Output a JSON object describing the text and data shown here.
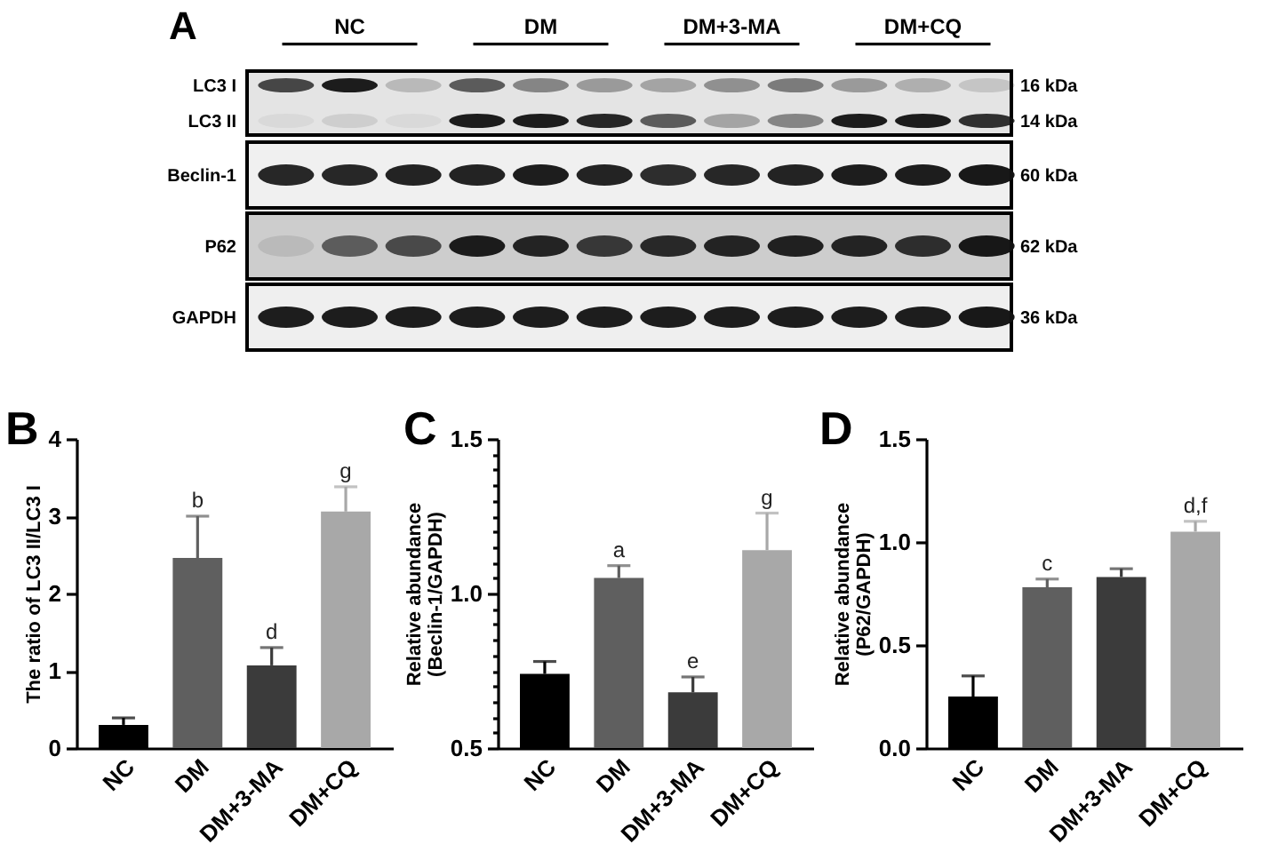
{
  "chart_data": [
    {
      "type": "other",
      "title": "A",
      "categories": [
        "NC",
        "DM",
        "DM+3-MA",
        "DM+CQ"
      ],
      "y_categories": [
        "LC3 I",
        "LC3 II",
        "Beclin-1",
        "P62",
        "GAPDH"
      ],
      "y2_categories": [
        "16 kDa",
        "14 kDa",
        "60 kDa",
        "62 kDa",
        "36 kDa"
      ]
    },
    {
      "type": "bar",
      "title": "B",
      "ylabel": "The ratio of LC3 II/LC3 I",
      "categories": [
        "NC",
        "DM",
        "DM+3-MA",
        "DM+CQ"
      ],
      "values": [
        0.3,
        2.46,
        1.07,
        3.06
      ],
      "colors": [
        "#000000",
        "#5f5f5f",
        "#3b3b3b",
        "#a8a8a8"
      ],
      "errors": [
        [
          0.3,
          0.39
        ],
        [
          2.46,
          3.0
        ],
        [
          1.07,
          1.3
        ],
        [
          3.06,
          3.38
        ]
      ],
      "ylim": [
        0,
        4
      ],
      "yticks": [
        0,
        1,
        2,
        3,
        4
      ],
      "annotations": [
        {
          "text": "b",
          "x": "DM",
          "y": 3.0
        },
        {
          "text": "d",
          "x": "DM+3-MA",
          "y": 1.3
        },
        {
          "text": "g",
          "x": "DM+CQ",
          "y": 3.38
        }
      ]
    },
    {
      "type": "bar",
      "title": "C",
      "ylabel": "Relative abundance\n(Beclin-1/GAPDH)",
      "categories": [
        "NC",
        "DM",
        "DM+3-MA",
        "DM+CQ"
      ],
      "values": [
        0.74,
        1.05,
        0.68,
        1.14
      ],
      "colors": [
        "#000000",
        "#5f5f5f",
        "#3b3b3b",
        "#a8a8a8"
      ],
      "errors": [
        [
          0.74,
          0.78
        ],
        [
          1.05,
          1.09
        ],
        [
          0.68,
          0.73
        ],
        [
          1.14,
          1.26
        ]
      ],
      "ylim": [
        0.5,
        1.5
      ],
      "yticks": [
        0.5,
        {
          "value": 0.55,
          "label": null
        },
        {
          "value": 0.6,
          "label": null
        },
        {
          "value": 0.65,
          "label": null
        },
        {
          "value": 0.7,
          "label": null
        },
        {
          "value": 0.75,
          "label": null
        },
        {
          "value": 0.8,
          "label": null
        },
        {
          "value": 0.85,
          "label": null
        },
        {
          "value": 0.9,
          "label": null
        },
        {
          "value": 0.95,
          "label": null
        },
        {
          "value": 1,
          "label": "1.0"
        },
        {
          "value": 1.05,
          "label": null
        },
        {
          "value": 1.1,
          "label": null
        },
        {
          "value": 1.15,
          "label": null
        },
        {
          "value": 1.2,
          "label": null
        },
        {
          "value": 1.25,
          "label": null
        },
        {
          "value": 1.3,
          "label": null
        },
        {
          "value": 1.35,
          "label": null
        },
        {
          "value": 1.4,
          "label": null
        },
        {
          "value": 1.45,
          "label": null
        },
        1.5
      ],
      "annotations": [
        {
          "text": "a",
          "x": "DM",
          "y": 1.09
        },
        {
          "text": "e",
          "x": "DM+3-MA",
          "y": 0.73
        },
        {
          "text": "g",
          "x": "DM+CQ",
          "y": 1.26
        }
      ]
    },
    {
      "type": "bar",
      "title": "D",
      "ylabel": "Relative abundance\n(P62/GAPDH)",
      "categories": [
        "NC",
        "DM",
        "DM+3-MA",
        "DM+CQ"
      ],
      "values": [
        0.25,
        0.78,
        0.83,
        1.05
      ],
      "colors": [
        "#000000",
        "#5f5f5f",
        "#3b3b3b",
        "#a8a8a8"
      ],
      "errors": [
        [
          0.25,
          0.35
        ],
        [
          0.78,
          0.82
        ],
        [
          0.83,
          0.87
        ],
        [
          1.05,
          1.1
        ]
      ],
      "ylim": [
        0,
        1.5
      ],
      "yticks": [
        {
          "value": 0,
          "label": "0.0"
        },
        0.5,
        {
          "value": 1,
          "label": "1.0"
        },
        1.5
      ],
      "annotations": [
        {
          "text": "c",
          "x": "DM",
          "y": 0.82
        },
        {
          "text": "d,f",
          "x": "DM+CQ",
          "y": 1.1
        }
      ]
    }
  ]
}
